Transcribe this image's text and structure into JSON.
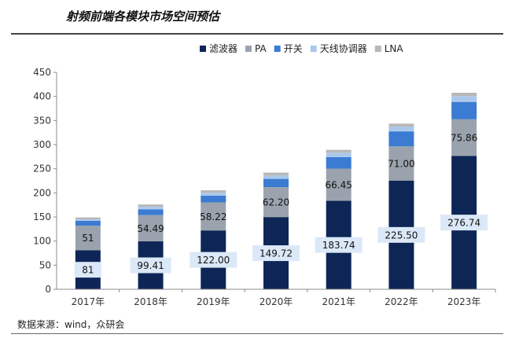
{
  "title": "射频前端各模块市场空间预估",
  "source": "数据来源：wind，众研会",
  "colors": {
    "filter": "#0d2656",
    "pa": "#9aa3ad",
    "switch": "#3b7bd2",
    "tuner": "#aac8ec",
    "lna": "#b8b8b8",
    "label_box": "#dbe8f7"
  },
  "chart_data": {
    "type": "bar",
    "stacked": true,
    "categories": [
      "2017年",
      "2018年",
      "2019年",
      "2020年",
      "2021年",
      "2022年",
      "2023年"
    ],
    "ylim": [
      0,
      450
    ],
    "yticks": [
      0,
      50,
      100,
      150,
      200,
      250,
      300,
      350,
      400,
      450
    ],
    "legend_position": "top-right",
    "series": [
      {
        "key": "filter",
        "name": "滤波器",
        "values": [
          81,
          99.41,
          122,
          149.72,
          183.74,
          225.5,
          276.74
        ],
        "labels": [
          "81",
          "99.41",
          "122.00",
          "149.72",
          "183.74",
          "225.50",
          "276.74"
        ]
      },
      {
        "key": "pa",
        "name": "PA",
        "values": [
          51,
          54.49,
          58.22,
          62.2,
          66.45,
          71,
          75.86
        ],
        "labels": [
          "51",
          "54.49",
          "58.22",
          "62.20",
          "66.45",
          "71.00",
          "75.86"
        ]
      },
      {
        "key": "switch",
        "name": "开关",
        "values": [
          10,
          12,
          14,
          17,
          24,
          31,
          36
        ]
      },
      {
        "key": "tuner",
        "name": "天线协调器",
        "values": [
          3,
          5,
          6,
          7,
          9,
          10,
          12
        ]
      },
      {
        "key": "lna",
        "name": "LNA",
        "values": [
          4,
          5,
          5,
          6,
          6,
          6,
          7
        ]
      }
    ]
  }
}
